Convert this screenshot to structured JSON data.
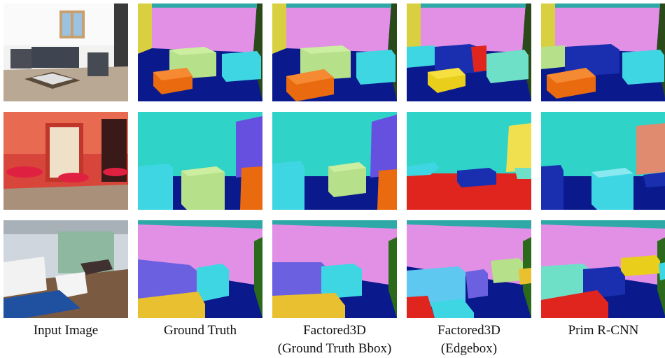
{
  "figure": {
    "columns": [
      {
        "id": "input",
        "lines": [
          "Input Image"
        ]
      },
      {
        "id": "gt",
        "lines": [
          "Ground Truth"
        ]
      },
      {
        "id": "f3d_gt",
        "lines": [
          "Factored3D",
          "(Ground Truth Bbox)"
        ]
      },
      {
        "id": "f3d_edge",
        "lines": [
          "Factored3D",
          "(Edgebox)"
        ]
      },
      {
        "id": "prim",
        "lines": [
          "Prim R-CNN"
        ]
      }
    ],
    "rows": [
      {
        "scene": "living room with sofas and coffee table"
      },
      {
        "scene": "red brick cafe with round stools"
      },
      {
        "scene": "lounge with white sofa and chairs"
      }
    ]
  },
  "colors": {
    "floor": "#0a1a8c",
    "wall_pink": "#e28fe6",
    "wall_cyan": "#2fd3c8",
    "box_green": "#b6e089",
    "box_cyan": "#3fd6e3",
    "box_orange": "#e96a0f",
    "box_blue": "#1a2fb0",
    "box_yellow": "#e9cf1c",
    "box_red": "#e0251f"
  }
}
